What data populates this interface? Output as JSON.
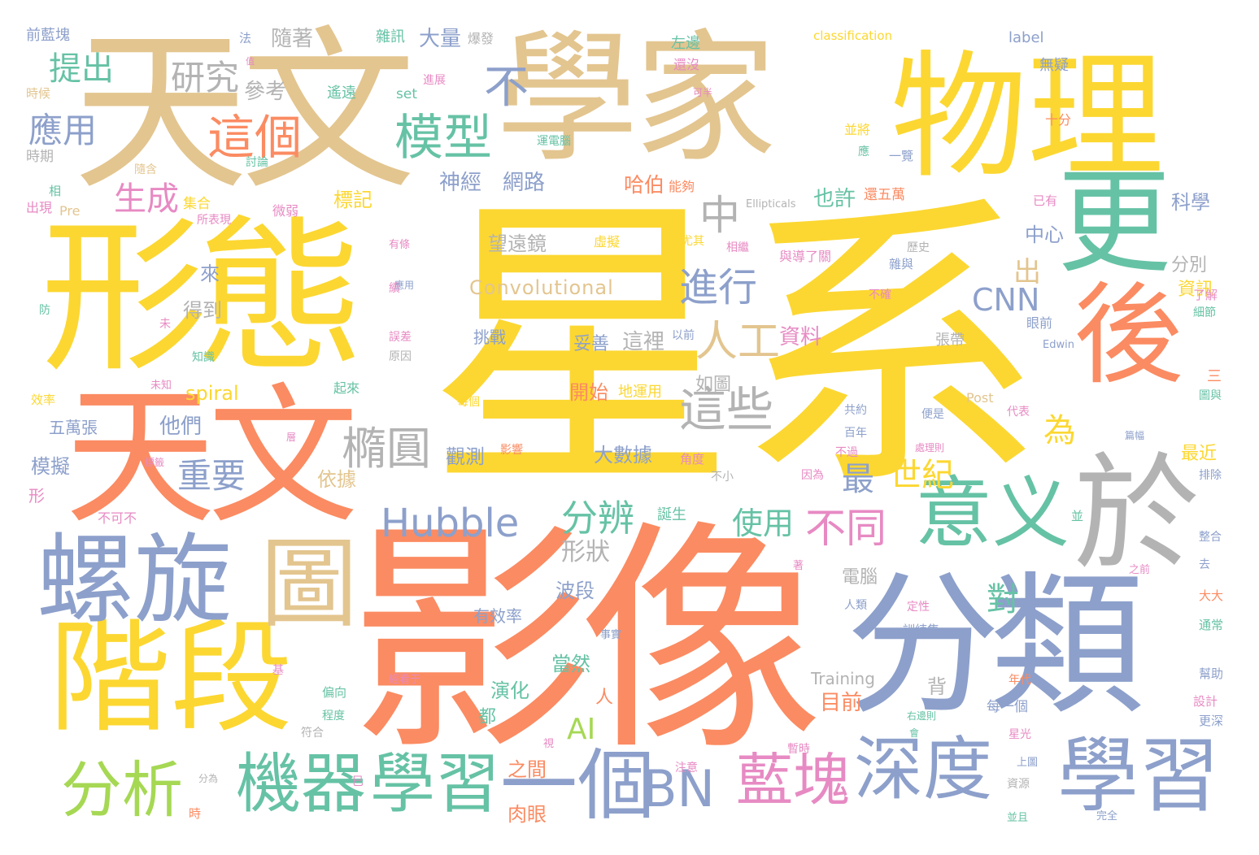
{
  "palette": {
    "tan": "#e3c58f",
    "yellow": "#fcd731",
    "orange": "#fb8b62",
    "blue": "#8da0cb",
    "green": "#66c2a5",
    "gray": "#b3b3b3",
    "pink": "#e78ac3",
    "lime": "#a6d854"
  },
  "words": [
    {
      "text": "星系",
      "color": "yellow"
    },
    {
      "text": "影像",
      "color": "orange"
    },
    {
      "text": "天文",
      "color": "tan"
    },
    {
      "text": "學家",
      "color": "tan"
    },
    {
      "text": "物理",
      "color": "yellow"
    },
    {
      "text": "形態",
      "color": "yellow"
    },
    {
      "text": "天文",
      "color": "orange"
    },
    {
      "text": "分類",
      "color": "blue"
    },
    {
      "text": "階段",
      "color": "yellow"
    },
    {
      "text": "螺旋",
      "color": "blue"
    },
    {
      "text": "於",
      "color": "gray"
    },
    {
      "text": "更",
      "color": "green"
    },
    {
      "text": "後",
      "color": "orange"
    },
    {
      "text": "學習",
      "color": "blue"
    },
    {
      "text": "深度",
      "color": "blue"
    },
    {
      "text": "意义",
      "color": "green"
    },
    {
      "text": "圖",
      "color": "tan"
    },
    {
      "text": "一個",
      "color": "blue"
    },
    {
      "text": "學習",
      "color": "green"
    },
    {
      "text": "機器",
      "color": "green"
    },
    {
      "text": "分析",
      "color": "lime"
    },
    {
      "text": "藍塊",
      "color": "pink"
    },
    {
      "text": "BN",
      "color": "blue"
    },
    {
      "text": "Hubble",
      "color": "blue"
    },
    {
      "text": "模型",
      "color": "green"
    },
    {
      "text": "這個",
      "color": "orange"
    },
    {
      "text": "這些",
      "color": "gray"
    },
    {
      "text": "橢圓",
      "color": "gray"
    },
    {
      "text": "人工",
      "color": "tan"
    },
    {
      "text": "不同",
      "color": "pink"
    },
    {
      "text": "進行",
      "color": "blue"
    },
    {
      "text": "分辨",
      "color": "green"
    },
    {
      "text": "中",
      "color": "gray"
    },
    {
      "text": "不",
      "color": "blue"
    },
    {
      "text": "研究",
      "color": "gray"
    },
    {
      "text": "提出",
      "color": "green"
    },
    {
      "text": "應用",
      "color": "blue"
    },
    {
      "text": "生成",
      "color": "pink"
    },
    {
      "text": "重要",
      "color": "blue"
    },
    {
      "text": "世紀",
      "color": "yellow"
    },
    {
      "text": "使用",
      "color": "green"
    },
    {
      "text": "CNN",
      "color": "blue"
    },
    {
      "text": "Convolutional",
      "color": "tan"
    },
    {
      "text": "望遠鏡",
      "color": "gray"
    },
    {
      "text": "形狀",
      "color": "gray"
    },
    {
      "text": "最",
      "color": "blue"
    },
    {
      "text": "為",
      "color": "yellow"
    },
    {
      "text": "對",
      "color": "green"
    },
    {
      "text": "AI",
      "color": "lime"
    },
    {
      "text": "出",
      "color": "tan"
    },
    {
      "text": "大量",
      "color": "blue"
    },
    {
      "text": "隨著",
      "color": "gray"
    },
    {
      "text": "參考",
      "color": "gray"
    },
    {
      "text": "神經",
      "color": "blue"
    },
    {
      "text": "網路",
      "color": "blue"
    },
    {
      "text": "哈伯",
      "color": "orange"
    },
    {
      "text": "也許",
      "color": "green"
    },
    {
      "text": "科學",
      "color": "blue"
    },
    {
      "text": "中心",
      "color": "blue"
    },
    {
      "text": "分別",
      "color": "gray"
    },
    {
      "text": "資訊",
      "color": "yellow"
    },
    {
      "text": "資料",
      "color": "pink"
    },
    {
      "text": "這裡",
      "color": "gray"
    },
    {
      "text": "妥善",
      "color": "blue"
    },
    {
      "text": "挑戰",
      "color": "blue"
    },
    {
      "text": "得到",
      "color": "gray"
    },
    {
      "text": "來",
      "color": "blue"
    },
    {
      "text": "標記",
      "color": "yellow"
    },
    {
      "text": "spiral",
      "color": "yellow"
    },
    {
      "text": "他們",
      "color": "blue"
    },
    {
      "text": "依據",
      "color": "tan"
    },
    {
      "text": "觀測",
      "color": "blue"
    },
    {
      "text": "大數據",
      "color": "blue"
    },
    {
      "text": "開始",
      "color": "orange"
    },
    {
      "text": "地運用",
      "color": "yellow"
    },
    {
      "text": "如圖",
      "color": "gray"
    },
    {
      "text": "波段",
      "color": "blue"
    },
    {
      "text": "有效率",
      "color": "blue"
    },
    {
      "text": "當然",
      "color": "green"
    },
    {
      "text": "演化",
      "color": "green"
    },
    {
      "text": "都",
      "color": "green"
    },
    {
      "text": "人",
      "color": "orange"
    },
    {
      "text": "目前",
      "color": "orange"
    },
    {
      "text": "背",
      "color": "gray"
    },
    {
      "text": "電腦",
      "color": "gray"
    },
    {
      "text": "Training",
      "color": "gray"
    },
    {
      "text": "最近",
      "color": "yellow"
    },
    {
      "text": "之間",
      "color": "orange"
    },
    {
      "text": "肉眼",
      "color": "orange"
    },
    {
      "text": "模擬",
      "color": "blue"
    },
    {
      "text": "五萬張",
      "color": "blue"
    },
    {
      "text": "應用",
      "color": "blue"
    },
    {
      "text": "前藍塊",
      "color": "blue"
    },
    {
      "text": "label",
      "color": "blue"
    },
    {
      "text": "classification",
      "color": "yellow"
    },
    {
      "text": "雜訊",
      "color": "green"
    },
    {
      "text": "爆發",
      "color": "gray"
    },
    {
      "text": "左邊",
      "color": "green"
    },
    {
      "text": "還沒",
      "color": "pink"
    },
    {
      "text": "無疑",
      "color": "blue"
    },
    {
      "text": "進展",
      "color": "pink"
    },
    {
      "text": "遙遠",
      "color": "green"
    },
    {
      "text": "set",
      "color": "green"
    },
    {
      "text": "時候",
      "color": "tan"
    },
    {
      "text": "時期",
      "color": "gray"
    },
    {
      "text": "隨含",
      "color": "tan"
    },
    {
      "text": "討論",
      "color": "green"
    },
    {
      "text": "運電腦",
      "color": "green"
    },
    {
      "text": "並將",
      "color": "yellow"
    },
    {
      "text": "應",
      "color": "green"
    },
    {
      "text": "一覽",
      "color": "blue"
    },
    {
      "text": "十分",
      "color": "orange"
    },
    {
      "text": "相",
      "color": "green"
    },
    {
      "text": "出現",
      "color": "pink"
    },
    {
      "text": "Pre",
      "color": "tan"
    },
    {
      "text": "集合",
      "color": "yellow"
    },
    {
      "text": "所表現",
      "color": "pink"
    },
    {
      "text": "微弱",
      "color": "pink"
    },
    {
      "text": "Ellipticals",
      "color": "gray"
    },
    {
      "text": "還五萬",
      "color": "orange"
    },
    {
      "text": "已有",
      "color": "pink"
    },
    {
      "text": "能夠",
      "color": "orange"
    },
    {
      "text": "尤其",
      "color": "yellow"
    },
    {
      "text": "相繼",
      "color": "pink"
    },
    {
      "text": "歷史",
      "color": "gray"
    },
    {
      "text": "雜與",
      "color": "blue"
    },
    {
      "text": "不確",
      "color": "pink"
    },
    {
      "text": "眼前",
      "color": "blue"
    },
    {
      "text": "了解",
      "color": "pink"
    },
    {
      "text": "細節",
      "color": "green"
    },
    {
      "text": "Edwin",
      "color": "blue"
    },
    {
      "text": "張帶",
      "color": "gray"
    },
    {
      "text": "以前",
      "color": "blue"
    },
    {
      "text": "原因",
      "color": "gray"
    },
    {
      "text": "誤差",
      "color": "pink"
    },
    {
      "text": "續",
      "color": "pink"
    },
    {
      "text": "未",
      "color": "pink"
    },
    {
      "text": "知識",
      "color": "green"
    },
    {
      "text": "防",
      "color": "green"
    },
    {
      "text": "效率",
      "color": "yellow"
    },
    {
      "text": "未知",
      "color": "pink"
    },
    {
      "text": "起來",
      "color": "green"
    },
    {
      "text": "每個",
      "color": "yellow"
    },
    {
      "text": "Post",
      "color": "tan"
    },
    {
      "text": "便是",
      "color": "blue"
    },
    {
      "text": "代表",
      "color": "pink"
    },
    {
      "text": "共約",
      "color": "blue"
    },
    {
      "text": "百年",
      "color": "blue"
    },
    {
      "text": "不過",
      "color": "pink"
    },
    {
      "text": "處理則",
      "color": "pink"
    },
    {
      "text": "角度",
      "color": "pink"
    },
    {
      "text": "不小",
      "color": "gray"
    },
    {
      "text": "因為",
      "color": "pink"
    },
    {
      "text": "誕生",
      "color": "green"
    },
    {
      "text": "影響",
      "color": "orange"
    },
    {
      "text": "並",
      "color": "green"
    },
    {
      "text": "排除",
      "color": "blue"
    },
    {
      "text": "整合",
      "color": "blue"
    },
    {
      "text": "去",
      "color": "blue"
    },
    {
      "text": "之前",
      "color": "pink"
    },
    {
      "text": "大大",
      "color": "orange"
    },
    {
      "text": "通常",
      "color": "green"
    },
    {
      "text": "幫助",
      "color": "blue"
    },
    {
      "text": "設計",
      "color": "pink"
    },
    {
      "text": "更深",
      "color": "blue"
    },
    {
      "text": "年代",
      "color": "orange"
    },
    {
      "text": "每一個",
      "color": "blue"
    },
    {
      "text": "星光",
      "color": "pink"
    },
    {
      "text": "資源",
      "color": "gray"
    },
    {
      "text": "上圖",
      "color": "blue"
    },
    {
      "text": "完全",
      "color": "blue"
    },
    {
      "text": "並且",
      "color": "green"
    },
    {
      "text": "訓練集",
      "color": "blue"
    },
    {
      "text": "定性",
      "color": "pink"
    },
    {
      "text": "人類",
      "color": "blue"
    },
    {
      "text": "事實",
      "color": "blue"
    },
    {
      "text": "注意",
      "color": "pink"
    },
    {
      "text": "暫時",
      "color": "pink"
    },
    {
      "text": "右邊則",
      "color": "green"
    },
    {
      "text": "會",
      "color": "green"
    },
    {
      "text": "偏向",
      "color": "green"
    },
    {
      "text": "程度",
      "color": "green"
    },
    {
      "text": "符合",
      "color": "gray"
    },
    {
      "text": "分為",
      "color": "gray"
    },
    {
      "text": "時",
      "color": "orange"
    },
    {
      "text": "巳",
      "color": "pink"
    },
    {
      "text": "形",
      "color": "pink"
    },
    {
      "text": "不可不",
      "color": "pink"
    },
    {
      "text": "三",
      "color": "orange"
    },
    {
      "text": "圖與",
      "color": "green"
    },
    {
      "text": "篇幅",
      "color": "blue"
    },
    {
      "text": "經看于",
      "color": "pink"
    },
    {
      "text": "著",
      "color": "pink"
    },
    {
      "text": "視",
      "color": "pink"
    },
    {
      "text": "基",
      "color": "pink"
    },
    {
      "text": "虛擬",
      "color": "yellow"
    },
    {
      "text": "與導了關",
      "color": "pink"
    },
    {
      "text": "法",
      "color": "blue"
    },
    {
      "text": "值",
      "color": "pink"
    },
    {
      "text": "有條",
      "color": "pink"
    },
    {
      "text": "標籤",
      "color": "pink"
    },
    {
      "text": "層",
      "color": "pink"
    },
    {
      "text": "可半",
      "color": "pink"
    }
  ]
}
